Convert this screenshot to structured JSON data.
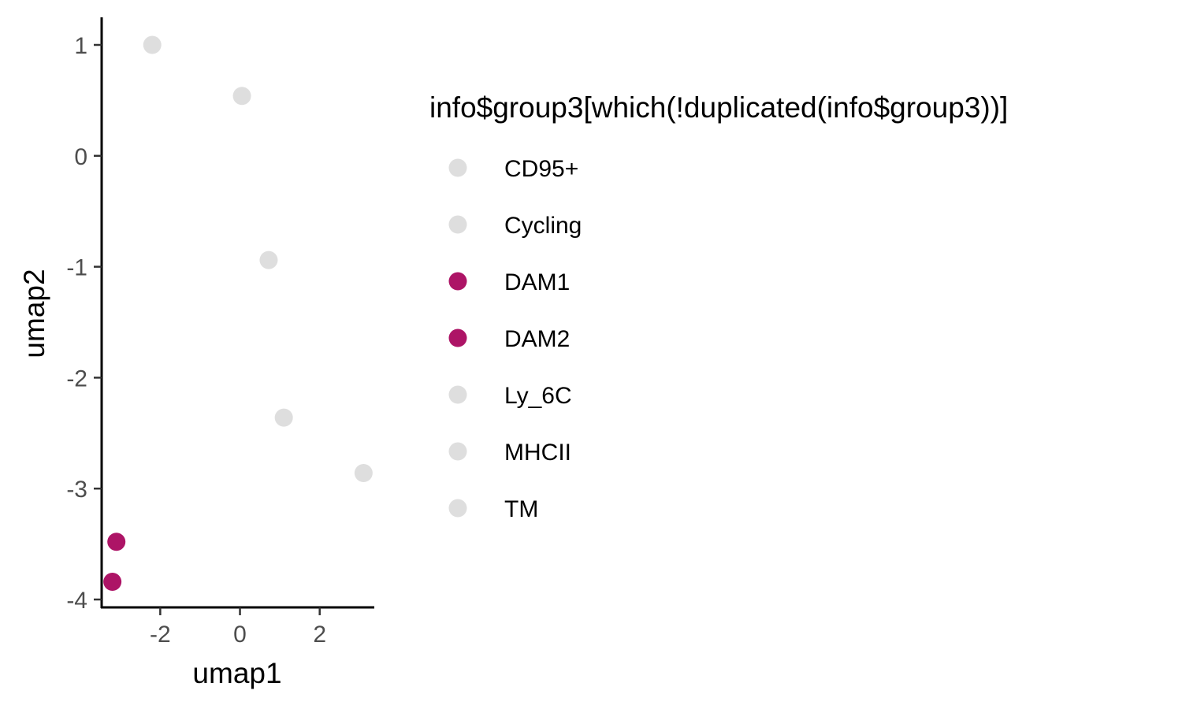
{
  "chart_data": {
    "type": "scatter",
    "title": "",
    "xlabel": "umap1",
    "ylabel": "umap2",
    "xlim": [
      -3.45,
      3.35
    ],
    "ylim": [
      -4.05,
      1.22
    ],
    "x_ticks": [
      -2,
      0,
      2
    ],
    "y_ticks": [
      1,
      0,
      -1,
      -2,
      -3,
      -4
    ],
    "x_tick_labels": [
      "-2",
      "0",
      "2"
    ],
    "y_tick_labels": [
      "1",
      "0",
      "-1",
      "-2",
      "-3",
      "-4"
    ],
    "grid": false,
    "legend_position": "right",
    "legend_title": "info$group3[which(!duplicated(info$group3))]",
    "series": [
      {
        "name": "CD95+",
        "x": -2.2,
        "y": 1.0,
        "color": "#DEDEDE"
      },
      {
        "name": "Cycling",
        "x": 0.05,
        "y": 0.54,
        "color": "#DEDEDE"
      },
      {
        "name": "DAM1",
        "x": -3.1,
        "y": -3.48,
        "color": "#AD1466"
      },
      {
        "name": "DAM2",
        "x": -3.2,
        "y": -3.84,
        "color": "#AD1466"
      },
      {
        "name": "Ly_6C",
        "x": 1.1,
        "y": -2.36,
        "color": "#DEDEDE"
      },
      {
        "name": "MHCII",
        "x": 3.1,
        "y": -2.86,
        "color": "#DEDEDE"
      },
      {
        "name": "TM",
        "x": 0.72,
        "y": -0.94,
        "color": "#DEDEDE"
      }
    ]
  }
}
